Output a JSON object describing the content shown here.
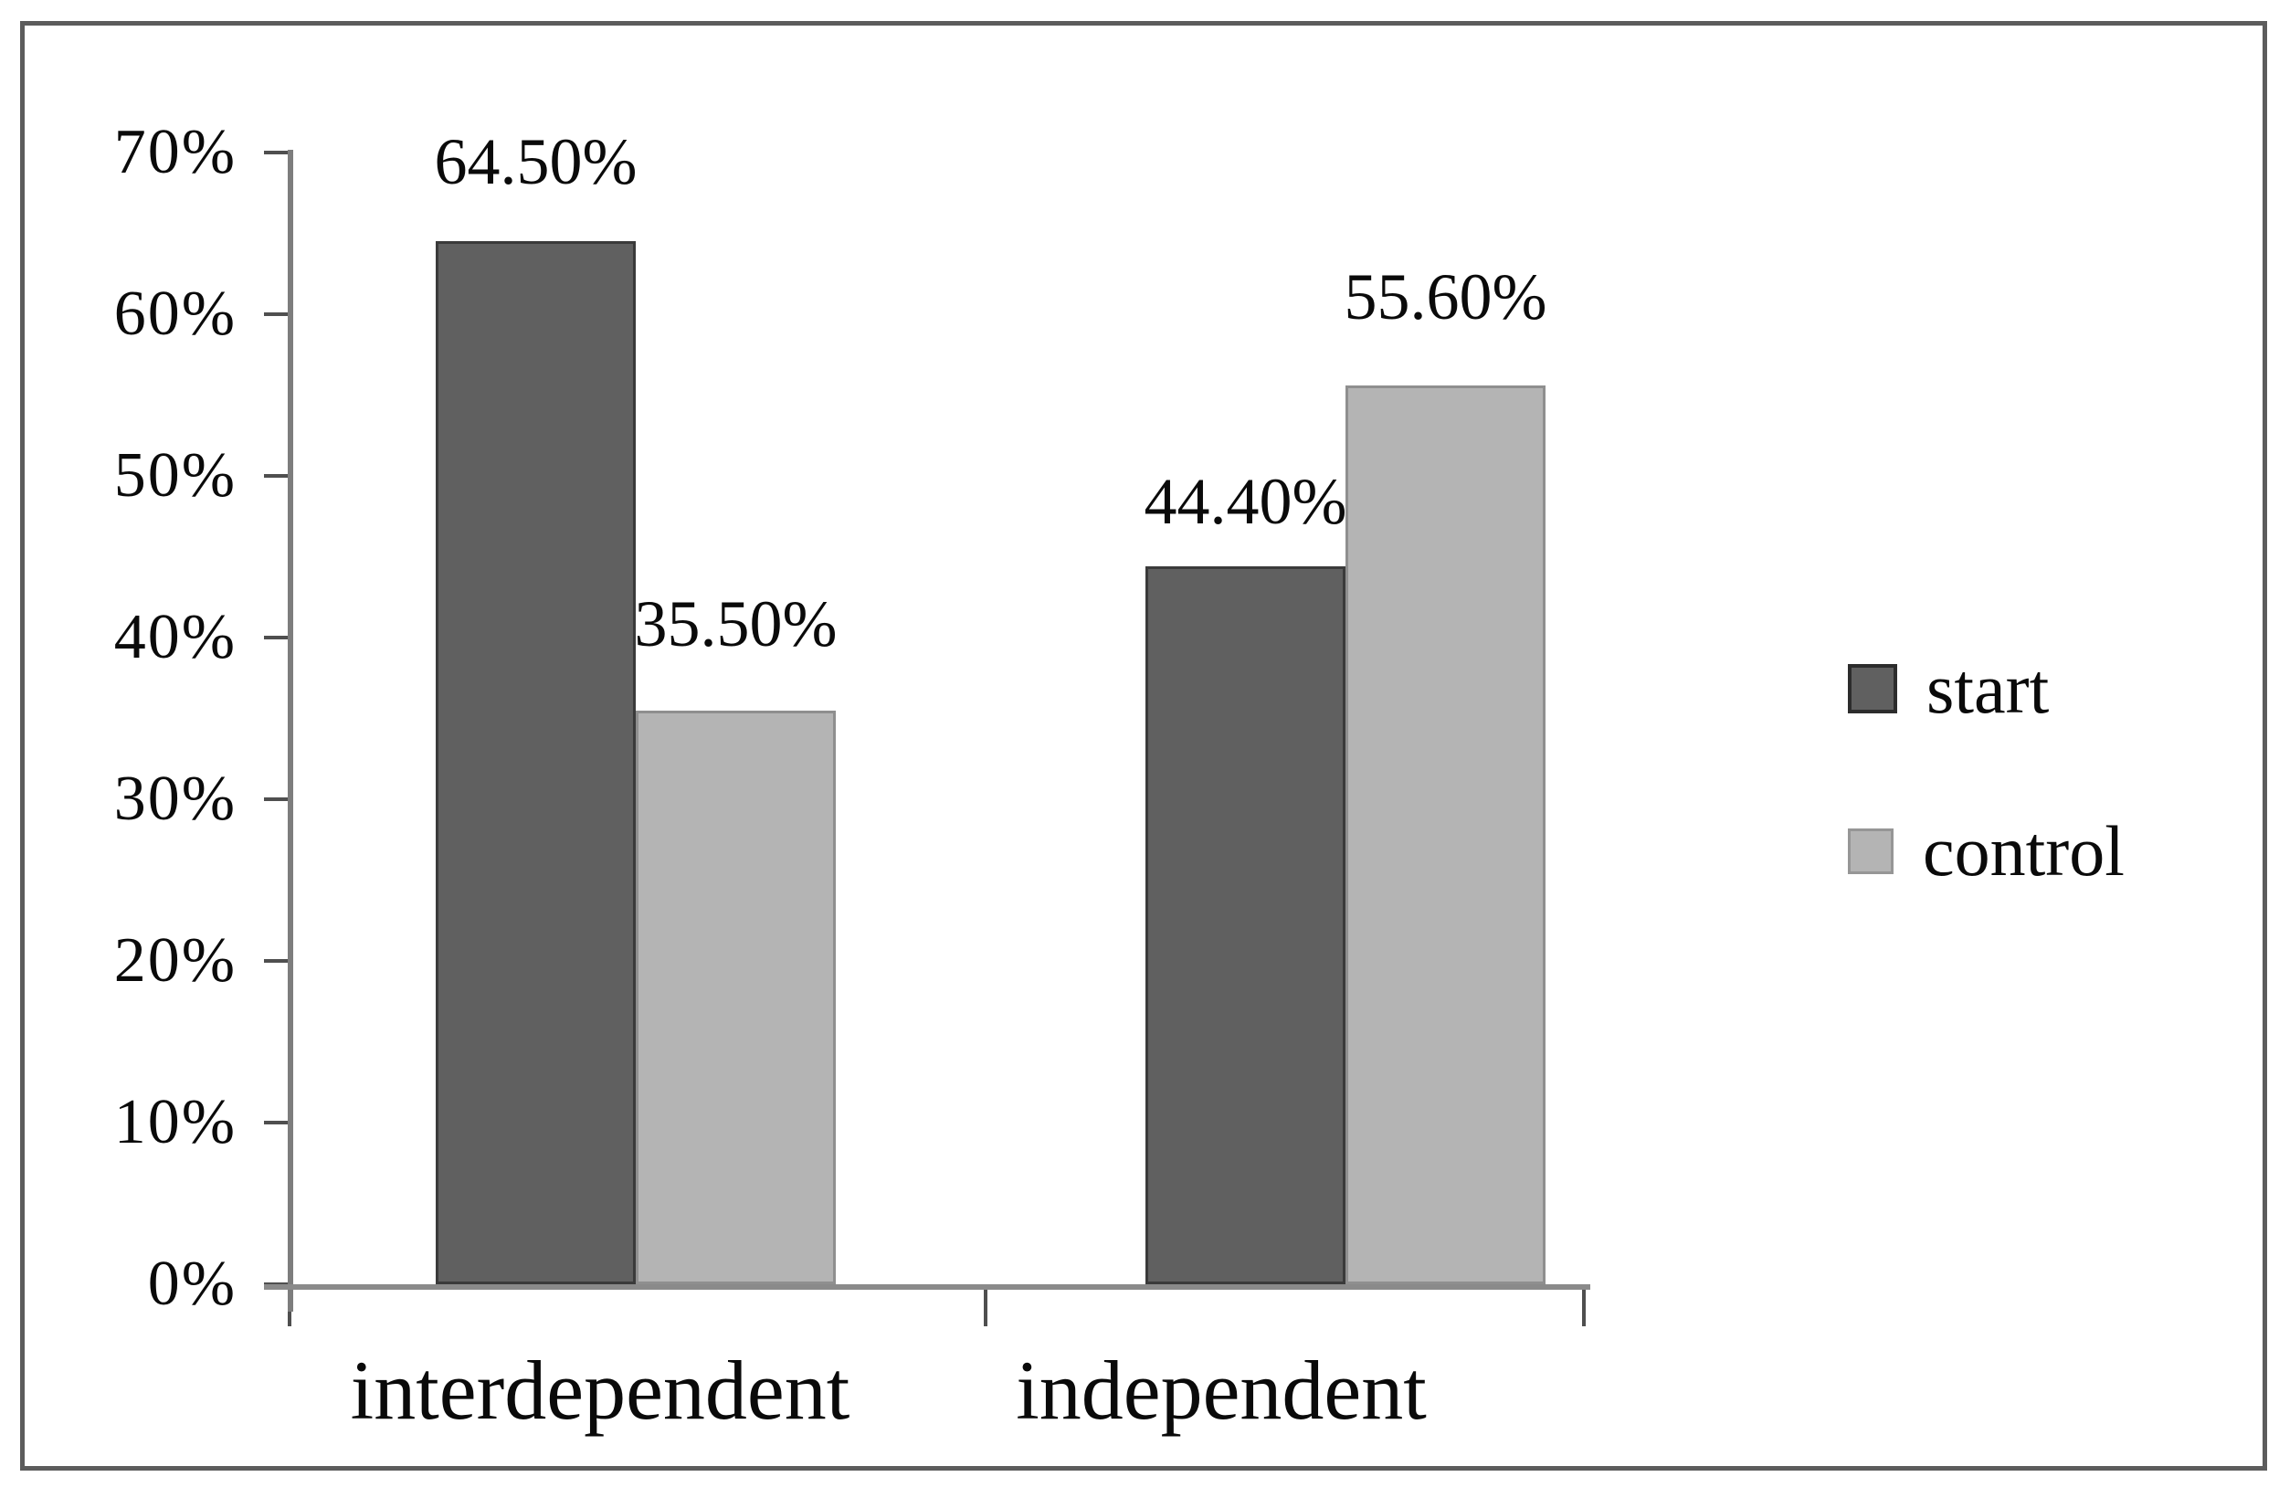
{
  "figure": {
    "background_color": "#ffffff",
    "frame_color": "#5c5c5c",
    "axis_color": "#8a8a8a",
    "text_color": "#0a0a0a"
  },
  "chart_data": {
    "type": "bar",
    "title": "",
    "xlabel": "",
    "ylabel": "",
    "categories": [
      "interdependent",
      "independent"
    ],
    "series": [
      {
        "name": "start",
        "color": "#606060",
        "border_color": "#3a3a3a",
        "values": [
          64.5,
          44.4
        ],
        "data_labels": [
          "64.50%",
          "44.40%"
        ]
      },
      {
        "name": "control",
        "color": "#b4b4b4",
        "border_color": "#8f8f8f",
        "values": [
          35.5,
          55.6
        ],
        "data_labels": [
          "35.50%",
          "55.60%"
        ]
      }
    ],
    "y_ticks": [
      {
        "value": 70,
        "label": "70%"
      },
      {
        "value": 60,
        "label": "60%"
      },
      {
        "value": 50,
        "label": "50%"
      },
      {
        "value": 40,
        "label": "40%"
      },
      {
        "value": 30,
        "label": "30%"
      },
      {
        "value": 20,
        "label": "20%"
      },
      {
        "value": 10,
        "label": "10%"
      },
      {
        "value": 0,
        "label": "0%"
      }
    ],
    "ylim": [
      0,
      70
    ],
    "grid": false,
    "legend_position": "right"
  }
}
